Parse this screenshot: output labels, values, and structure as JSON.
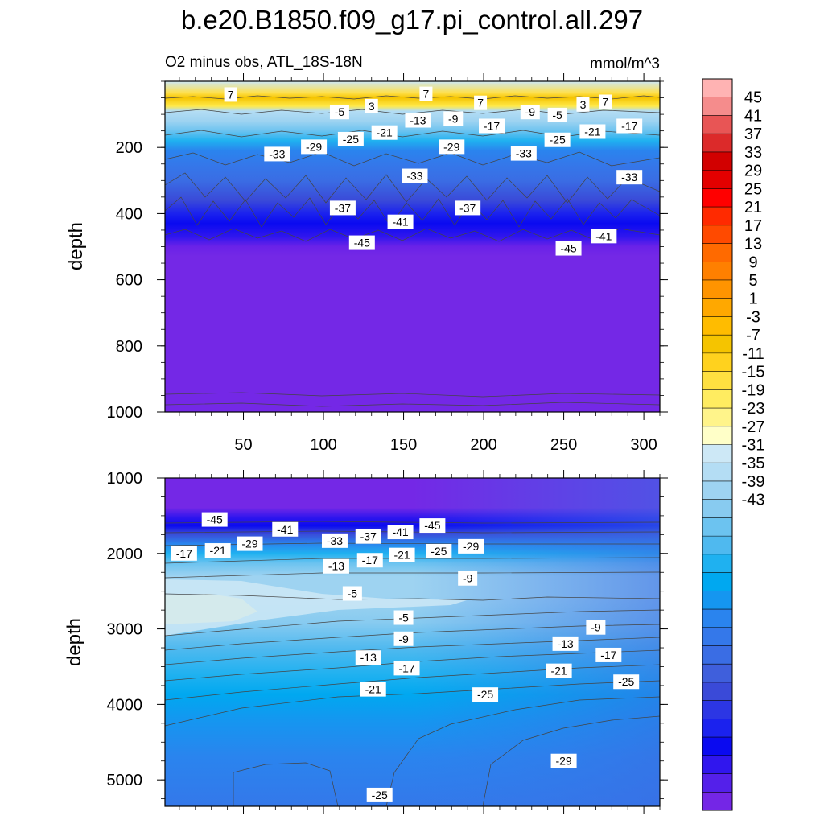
{
  "chart_data": {
    "type": "contour",
    "title": "b.e20.B1850.f09_g17.pi_control.all.297",
    "subtitle_left": "O2 minus obs, ATL_18S-18N",
    "units": "mmol/m^3",
    "ylabel": "depth",
    "x_ticks": [
      "50",
      "100",
      "150",
      "200",
      "250",
      "300"
    ],
    "x_tick_values": [
      50,
      100,
      150,
      200,
      250,
      300
    ],
    "xlim": [
      1,
      310
    ],
    "panels": [
      {
        "name": "upper",
        "ylim": [
          0,
          1000
        ],
        "y_ticks": [
          "200",
          "400",
          "600",
          "800",
          "1000"
        ],
        "y_tick_values": [
          200,
          400,
          600,
          800,
          1000
        ],
        "contour_labels": [
          {
            "text": "7",
            "x": 42,
            "y": 40
          },
          {
            "text": "7",
            "x": 164,
            "y": 38
          },
          {
            "text": "7",
            "x": 198,
            "y": 65
          },
          {
            "text": "7",
            "x": 276,
            "y": 62
          },
          {
            "text": "3",
            "x": 130,
            "y": 75
          },
          {
            "text": "3",
            "x": 262,
            "y": 70
          },
          {
            "text": "-5",
            "x": 110,
            "y": 93
          },
          {
            "text": "-5",
            "x": 246,
            "y": 102
          },
          {
            "text": "-9",
            "x": 181,
            "y": 113
          },
          {
            "text": "-9",
            "x": 229,
            "y": 93
          },
          {
            "text": "-13",
            "x": 159,
            "y": 118
          },
          {
            "text": "-17",
            "x": 205,
            "y": 135
          },
          {
            "text": "-17",
            "x": 291,
            "y": 135
          },
          {
            "text": "-21",
            "x": 138,
            "y": 155
          },
          {
            "text": "-21",
            "x": 268,
            "y": 152
          },
          {
            "text": "-25",
            "x": 117,
            "y": 175
          },
          {
            "text": "-25",
            "x": 246,
            "y": 177
          },
          {
            "text": "-29",
            "x": 94,
            "y": 198
          },
          {
            "text": "-29",
            "x": 180,
            "y": 198
          },
          {
            "text": "-33",
            "x": 71,
            "y": 220
          },
          {
            "text": "-33",
            "x": 157,
            "y": 286
          },
          {
            "text": "-33",
            "x": 225,
            "y": 218
          },
          {
            "text": "-33",
            "x": 291,
            "y": 290
          },
          {
            "text": "-37",
            "x": 112,
            "y": 383
          },
          {
            "text": "-37",
            "x": 190,
            "y": 383
          },
          {
            "text": "-41",
            "x": 148,
            "y": 425
          },
          {
            "text": "-41",
            "x": 275,
            "y": 468
          },
          {
            "text": "-45",
            "x": 124,
            "y": 488
          },
          {
            "text": "-45",
            "x": 253,
            "y": 505
          }
        ]
      },
      {
        "name": "lower",
        "ylim": [
          1000,
          5350
        ],
        "y_ticks": [
          "1000",
          "2000",
          "3000",
          "4000",
          "5000"
        ],
        "y_tick_values": [
          1000,
          2000,
          3000,
          4000,
          5000
        ],
        "contour_labels": [
          {
            "text": "-45",
            "x": 32,
            "y": 1550
          },
          {
            "text": "-41",
            "x": 76,
            "y": 1680
          },
          {
            "text": "-37",
            "x": 128,
            "y": 1775
          },
          {
            "text": "-41",
            "x": 148,
            "y": 1715
          },
          {
            "text": "-45",
            "x": 168,
            "y": 1630
          },
          {
            "text": "-33",
            "x": 107,
            "y": 1830
          },
          {
            "text": "-29",
            "x": 54,
            "y": 1870
          },
          {
            "text": "-29",
            "x": 192,
            "y": 1905
          },
          {
            "text": "-25",
            "x": 172,
            "y": 1970
          },
          {
            "text": "-21",
            "x": 34,
            "y": 1960
          },
          {
            "text": "-21",
            "x": 149,
            "y": 2020
          },
          {
            "text": "-17",
            "x": 13,
            "y": 2000
          },
          {
            "text": "-17",
            "x": 129,
            "y": 2090
          },
          {
            "text": "-13",
            "x": 108,
            "y": 2170
          },
          {
            "text": "-9",
            "x": 190,
            "y": 2330
          },
          {
            "text": "-9",
            "x": 270,
            "y": 2980
          },
          {
            "text": "-9",
            "x": 150,
            "y": 3130
          },
          {
            "text": "-5",
            "x": 118,
            "y": 2530
          },
          {
            "text": "-5",
            "x": 150,
            "y": 2850
          },
          {
            "text": "-13",
            "x": 128,
            "y": 3380
          },
          {
            "text": "-13",
            "x": 251,
            "y": 3195
          },
          {
            "text": "-17",
            "x": 152,
            "y": 3520
          },
          {
            "text": "-17",
            "x": 278,
            "y": 3345
          },
          {
            "text": "-21",
            "x": 131,
            "y": 3800
          },
          {
            "text": "-21",
            "x": 247,
            "y": 3555
          },
          {
            "text": "-25",
            "x": 201,
            "y": 3870
          },
          {
            "text": "-25",
            "x": 289,
            "y": 3700
          },
          {
            "text": "-29",
            "x": 250,
            "y": 4750
          },
          {
            "text": "-25",
            "x": 135,
            "y": 5200
          }
        ]
      }
    ],
    "colorbar": {
      "labels": [
        "45",
        "41",
        "37",
        "33",
        "29",
        "25",
        "21",
        "17",
        "13",
        "9",
        "5",
        "1",
        "-3",
        "-7",
        "-11",
        "-15",
        "-19",
        "-23",
        "-27",
        "-31",
        "-35",
        "-39",
        "-43"
      ],
      "colors": [
        "#ffb3b3",
        "#f58c8c",
        "#e85555",
        "#dc2a2a",
        "#d20000",
        "#e30000",
        "#ff0000",
        "#ff2a00",
        "#ff4a00",
        "#ff6a00",
        "#ff8000",
        "#ff9400",
        "#ffa800",
        "#ffbc00",
        "#f5c400",
        "#ffd21e",
        "#ffe040",
        "#ffec60",
        "#fff48a",
        "#ffffc8",
        "#cde8f6",
        "#b4ddf4",
        "#9ed3f1",
        "#88cbf0",
        "#6cc3f0",
        "#4fb9ef",
        "#1fb1f0",
        "#00a8f0",
        "#1596f0",
        "#2a84ee",
        "#3478ea",
        "#3a6de4",
        "#3f5fdc",
        "#3a4ad8",
        "#2c36e4",
        "#1b22ee",
        "#0a0af0",
        "#3016ee",
        "#5420ea",
        "#7426e6"
      ]
    }
  }
}
